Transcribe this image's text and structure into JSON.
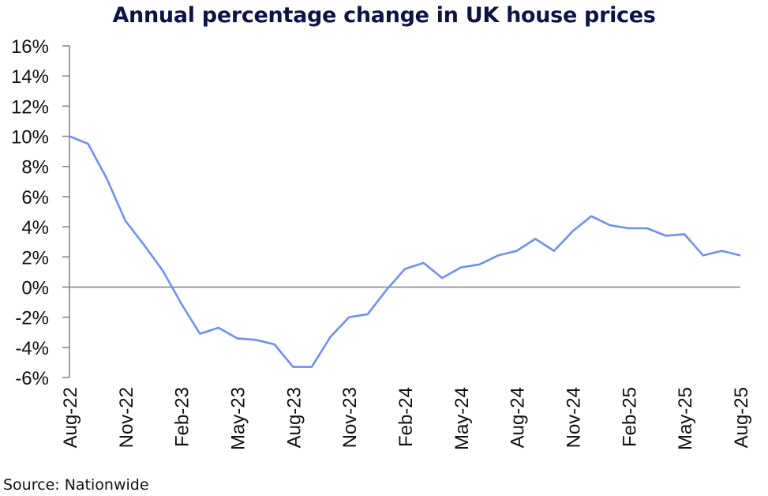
{
  "chart_data": {
    "type": "line",
    "title": "Annual percentage change in UK house prices",
    "xlabel": "",
    "ylabel": "",
    "ylim": [
      -6,
      16
    ],
    "yticks": [
      16,
      14,
      12,
      10,
      8,
      6,
      4,
      2,
      0,
      -2,
      -4,
      -6
    ],
    "ytick_labels": [
      "16%",
      "14%",
      "12%",
      "10%",
      "8%",
      "6%",
      "4%",
      "2%",
      "0%",
      "-2%",
      "-4%",
      "-6%"
    ],
    "xtick_labels": [
      "Aug-22",
      "Nov-22",
      "Feb-23",
      "May-23",
      "Aug-23",
      "Nov-23",
      "Feb-24",
      "May-24",
      "Aug-24",
      "Nov-24",
      "Feb-25",
      "May-25",
      "Aug-25"
    ],
    "xtick_every": 3,
    "grid": false,
    "legend": "none",
    "x": [
      "Aug-22",
      "Sep-22",
      "Oct-22",
      "Nov-22",
      "Dec-22",
      "Jan-23",
      "Feb-23",
      "Mar-23",
      "Apr-23",
      "May-23",
      "Jun-23",
      "Jul-23",
      "Aug-23",
      "Sep-23",
      "Oct-23",
      "Nov-23",
      "Dec-23",
      "Jan-24",
      "Feb-24",
      "Mar-24",
      "Apr-24",
      "May-24",
      "Jun-24",
      "Jul-24",
      "Aug-24",
      "Sep-24",
      "Oct-24",
      "Nov-24",
      "Dec-24",
      "Jan-25",
      "Feb-25",
      "Mar-25",
      "Apr-25",
      "May-25",
      "Jun-25",
      "Jul-25",
      "Aug-25"
    ],
    "series": [
      {
        "name": "Annual % change",
        "color": "#6f8ff0",
        "values": [
          10.0,
          9.5,
          7.2,
          4.4,
          2.8,
          1.1,
          -1.1,
          -3.1,
          -2.7,
          -3.4,
          -3.5,
          -3.8,
          -5.3,
          -5.3,
          -3.3,
          -2.0,
          -1.8,
          -0.2,
          1.2,
          1.6,
          0.6,
          1.3,
          1.5,
          2.1,
          2.4,
          3.2,
          2.4,
          3.7,
          4.7,
          4.1,
          3.9,
          3.9,
          3.4,
          3.5,
          2.1,
          2.4,
          2.1
        ]
      }
    ],
    "source": "Source: Nationwide",
    "colors": {
      "title": "#0c1446",
      "axis": "#7f7f7f",
      "line": "#6f8ff0"
    }
  }
}
